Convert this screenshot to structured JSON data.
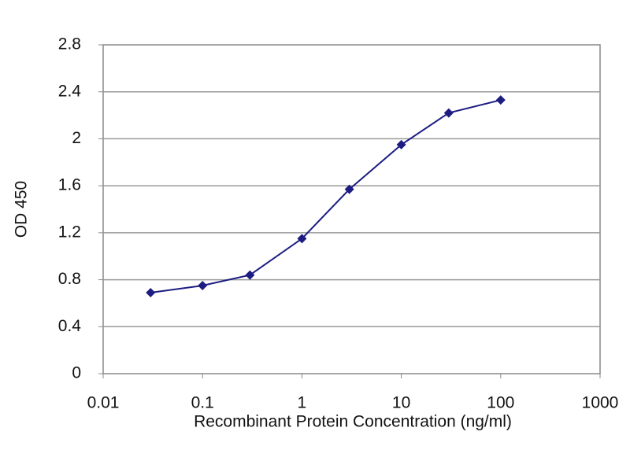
{
  "chart_data": {
    "type": "line",
    "x_label": "Recombinant Protein Concentration (ng/ml)",
    "y_label": "OD 450",
    "x_scale": "log",
    "x": [
      0.03,
      0.1,
      0.3,
      1,
      3,
      10,
      30,
      100
    ],
    "series": [
      {
        "color": "#1c1c82",
        "values": [
          0.69,
          0.75,
          0.84,
          1.15,
          1.57,
          1.95,
          2.22,
          2.33
        ]
      }
    ],
    "xlim": [
      0.01,
      1000
    ],
    "xticks": [
      0.01,
      0.1,
      1,
      10,
      100,
      1000
    ],
    "ylim": [
      0,
      2.8
    ],
    "yticks": [
      0,
      0.4,
      0.8,
      1.2,
      1.6,
      2,
      2.4,
      2.8
    ],
    "grid": true
  }
}
